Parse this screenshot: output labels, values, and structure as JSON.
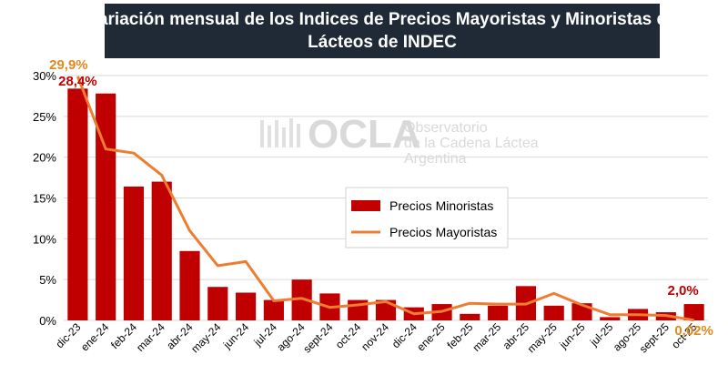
{
  "chart_data": {
    "type": "bar",
    "title_lines": [
      "Variación mensual de los Indices de Precios Mayoristas y Minoristas de",
      "Lácteos de INDEC"
    ],
    "categories": [
      "dic-23",
      "ene-24",
      "feb-24",
      "mar-24",
      "abr-24",
      "may-24",
      "jun-24",
      "jul-24",
      "ago-24",
      "sept-24",
      "oct-24",
      "nov-24",
      "dic-24",
      "ene-25",
      "feb-25",
      "mar-25",
      "abr-25",
      "may-25",
      "jun-25",
      "jul-25",
      "ago-25",
      "sept-25",
      "oct-25"
    ],
    "ylim": [
      0,
      30
    ],
    "yticks": [
      0,
      5,
      10,
      15,
      20,
      25,
      30
    ],
    "ytick_labels": [
      "0%",
      "5%",
      "10%",
      "15%",
      "20%",
      "25%",
      "30%"
    ],
    "grid": true,
    "legend_position": "center",
    "series": [
      {
        "name": "Precios Minoristas",
        "kind": "bar",
        "color": "#c00000",
        "values": [
          28.4,
          27.8,
          16.4,
          17.0,
          8.5,
          4.1,
          3.4,
          2.5,
          5.0,
          3.3,
          2.5,
          2.5,
          1.6,
          2.0,
          0.8,
          1.8,
          4.2,
          1.8,
          2.1,
          0.4,
          1.4,
          1.0,
          2.0
        ]
      },
      {
        "name": "Precios Mayoristas",
        "kind": "line",
        "color": "#ed7d31",
        "values": [
          29.9,
          21.0,
          20.5,
          17.8,
          11.0,
          6.7,
          7.2,
          2.4,
          2.7,
          1.6,
          1.9,
          2.3,
          0.8,
          1.1,
          2.1,
          2.0,
          2.0,
          3.3,
          1.9,
          0.7,
          0.7,
          0.6,
          0.02
        ]
      }
    ],
    "annotations": [
      {
        "text": "29,9%",
        "series": "Precios Mayoristas",
        "index": 0
      },
      {
        "text": "28,4%",
        "series": "Precios Minoristas",
        "index": 0
      },
      {
        "text": "2,0%",
        "series": "Precios Minoristas",
        "index": 22
      },
      {
        "text": "0,02%",
        "series": "Precios Mayoristas",
        "index": 22
      }
    ]
  },
  "watermark": {
    "brand": "OCLA",
    "line1": "Observatorio",
    "line2": "de la Cadena Láctea",
    "line3": "Argentina"
  },
  "colors": {
    "title_bg": "#1f2a36",
    "grid": "#d9d9d9",
    "bar": "#c00000",
    "line": "#ed7d31",
    "label_min": "#c00000",
    "label_may": "#e08a1e"
  }
}
